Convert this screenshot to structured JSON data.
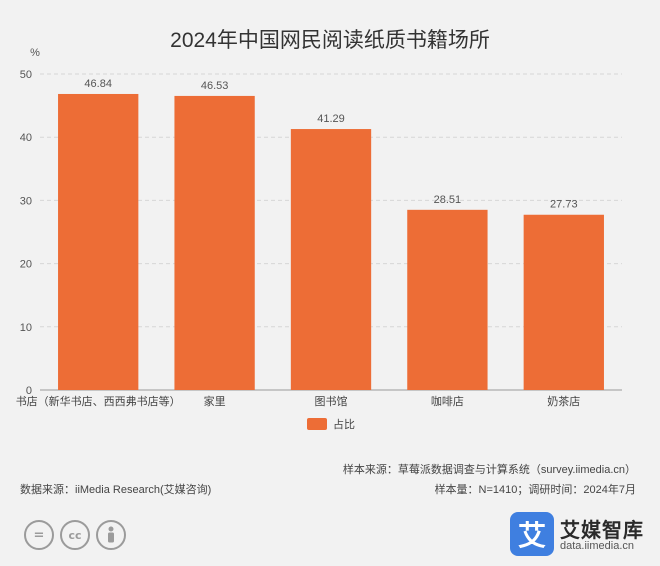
{
  "chart_data": {
    "type": "bar",
    "title": "2024年中国网民阅读纸质书籍场所",
    "unit_label": "%",
    "categories": [
      "书店（新华书店、西西弗书店等）",
      "家里",
      "图书馆",
      "咖啡店",
      "奶茶店"
    ],
    "series": [
      {
        "name": "占比",
        "values": [
          46.84,
          46.53,
          41.29,
          28.51,
          27.73
        ],
        "color": "#ed6d36"
      }
    ],
    "ylim": [
      0,
      50
    ],
    "yticks": [
      0,
      10,
      20,
      30,
      40,
      50
    ],
    "grid": true,
    "legend_position": "bottom"
  },
  "footer": {
    "sample_source": "样本来源：草莓派数据调查与计算系统（survey.iimedia.cn）",
    "data_source": "数据来源：iiMedia Research(艾媒咨询)",
    "sample_size": "样本量：N=1410；调研时间：2024年7月"
  },
  "license_icons": [
    "equals-icon",
    "cc-icon",
    "person-icon"
  ],
  "brand": {
    "logo_glyph": "艾",
    "name": "艾媒智库",
    "url": "data.iimedia.cn",
    "color": "#3f7fe0"
  }
}
